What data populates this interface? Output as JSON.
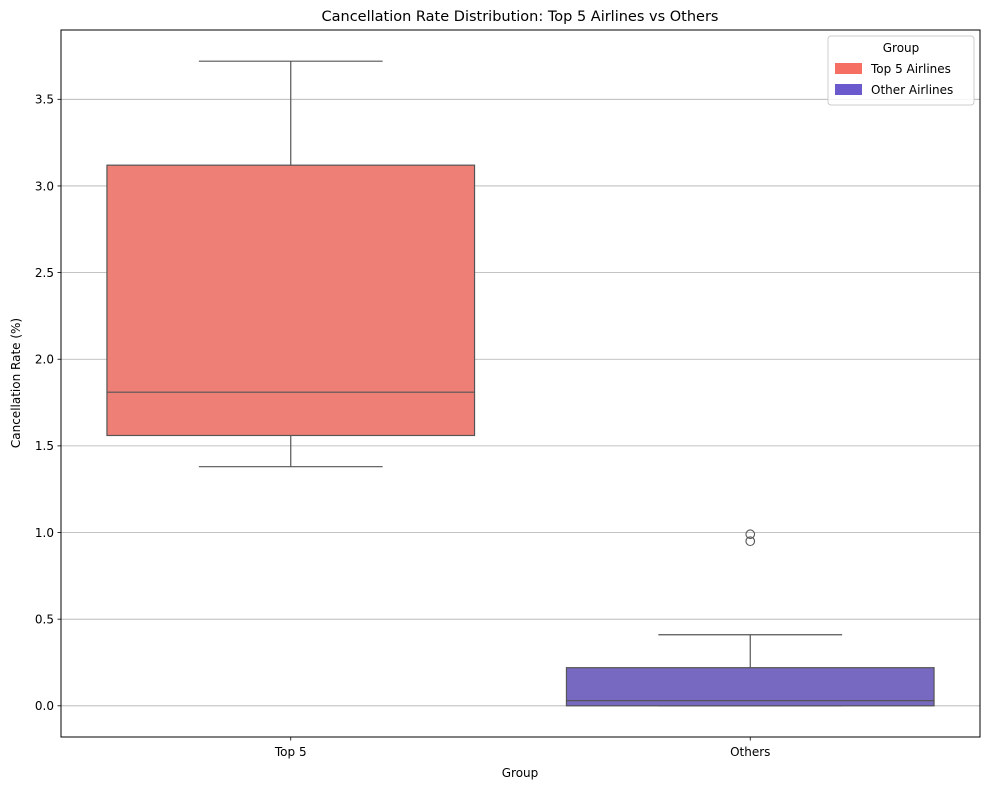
{
  "chart_data": {
    "type": "box",
    "title": "Cancellation Rate Distribution: Top 5 Airlines vs Others",
    "xlabel": "Group",
    "ylabel": "Cancellation Rate (%)",
    "categories": [
      "Top 5",
      "Others"
    ],
    "ylim": [
      -0.18,
      3.9
    ],
    "yticks": [
      0.0,
      0.5,
      1.0,
      1.5,
      2.0,
      2.5,
      3.0,
      3.5
    ],
    "ytick_labels": [
      "0.0",
      "0.5",
      "1.0",
      "1.5",
      "2.0",
      "2.5",
      "3.0",
      "3.5"
    ],
    "grid": "horizontal",
    "boxes": [
      {
        "category": "Top 5",
        "whisker_low": 1.38,
        "q1": 1.56,
        "median": 1.81,
        "q3": 3.12,
        "whisker_high": 3.72,
        "outliers": [],
        "color": "#ed7f77"
      },
      {
        "category": "Others",
        "whisker_low": 0.0,
        "q1": 0.0,
        "median": 0.03,
        "q3": 0.22,
        "whisker_high": 0.41,
        "outliers": [
          0.95,
          0.99
        ],
        "color": "#7769c1"
      }
    ],
    "legend": {
      "title": "Group",
      "placement": "top-right",
      "entries": [
        {
          "label": "Top 5 Airlines",
          "color": "#f66f63"
        },
        {
          "label": "Other Airlines",
          "color": "#6a5acd"
        }
      ]
    }
  }
}
